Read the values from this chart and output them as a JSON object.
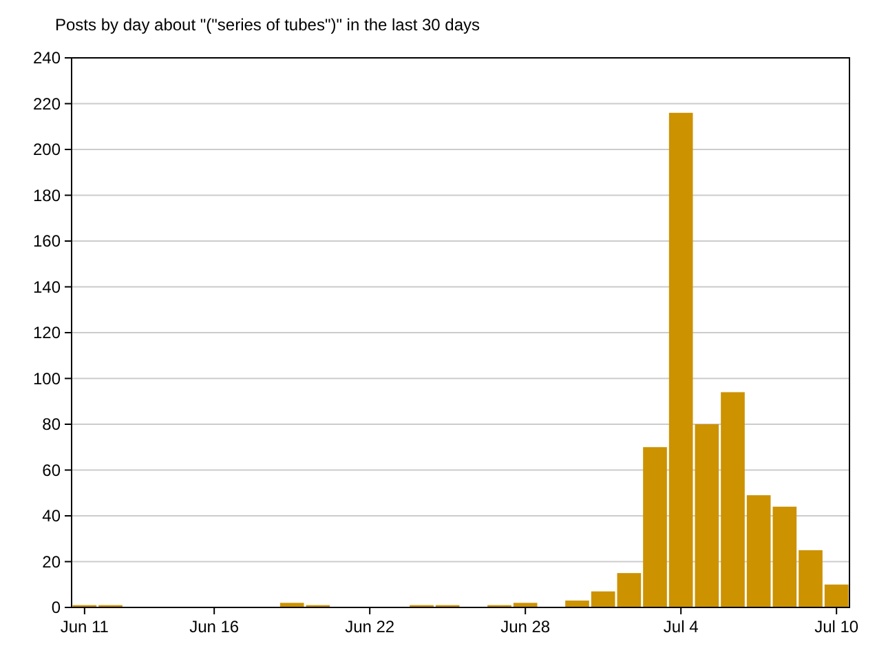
{
  "chart_data": {
    "type": "bar",
    "title": "Posts by day about \"(\"series of tubes\")\" in the last 30 days",
    "categories": [
      "Jun 11",
      null,
      null,
      null,
      null,
      "Jun 16",
      null,
      null,
      null,
      null,
      null,
      "Jun 22",
      null,
      null,
      null,
      null,
      null,
      "Jun 28",
      null,
      null,
      null,
      null,
      null,
      "Jul 4",
      null,
      null,
      null,
      null,
      null,
      "Jul 10"
    ],
    "values": [
      1,
      1,
      0,
      0,
      0,
      0,
      0,
      0,
      2,
      1,
      0,
      0,
      0,
      1,
      1,
      0,
      1,
      2,
      0,
      3,
      7,
      15,
      70,
      216,
      80,
      94,
      49,
      44,
      25,
      10
    ],
    "color": "#cc9200",
    "ylim": [
      0,
      240
    ],
    "yticks": [
      0,
      20,
      40,
      60,
      80,
      100,
      120,
      140,
      160,
      180,
      200,
      220,
      240
    ],
    "grid": "y"
  }
}
